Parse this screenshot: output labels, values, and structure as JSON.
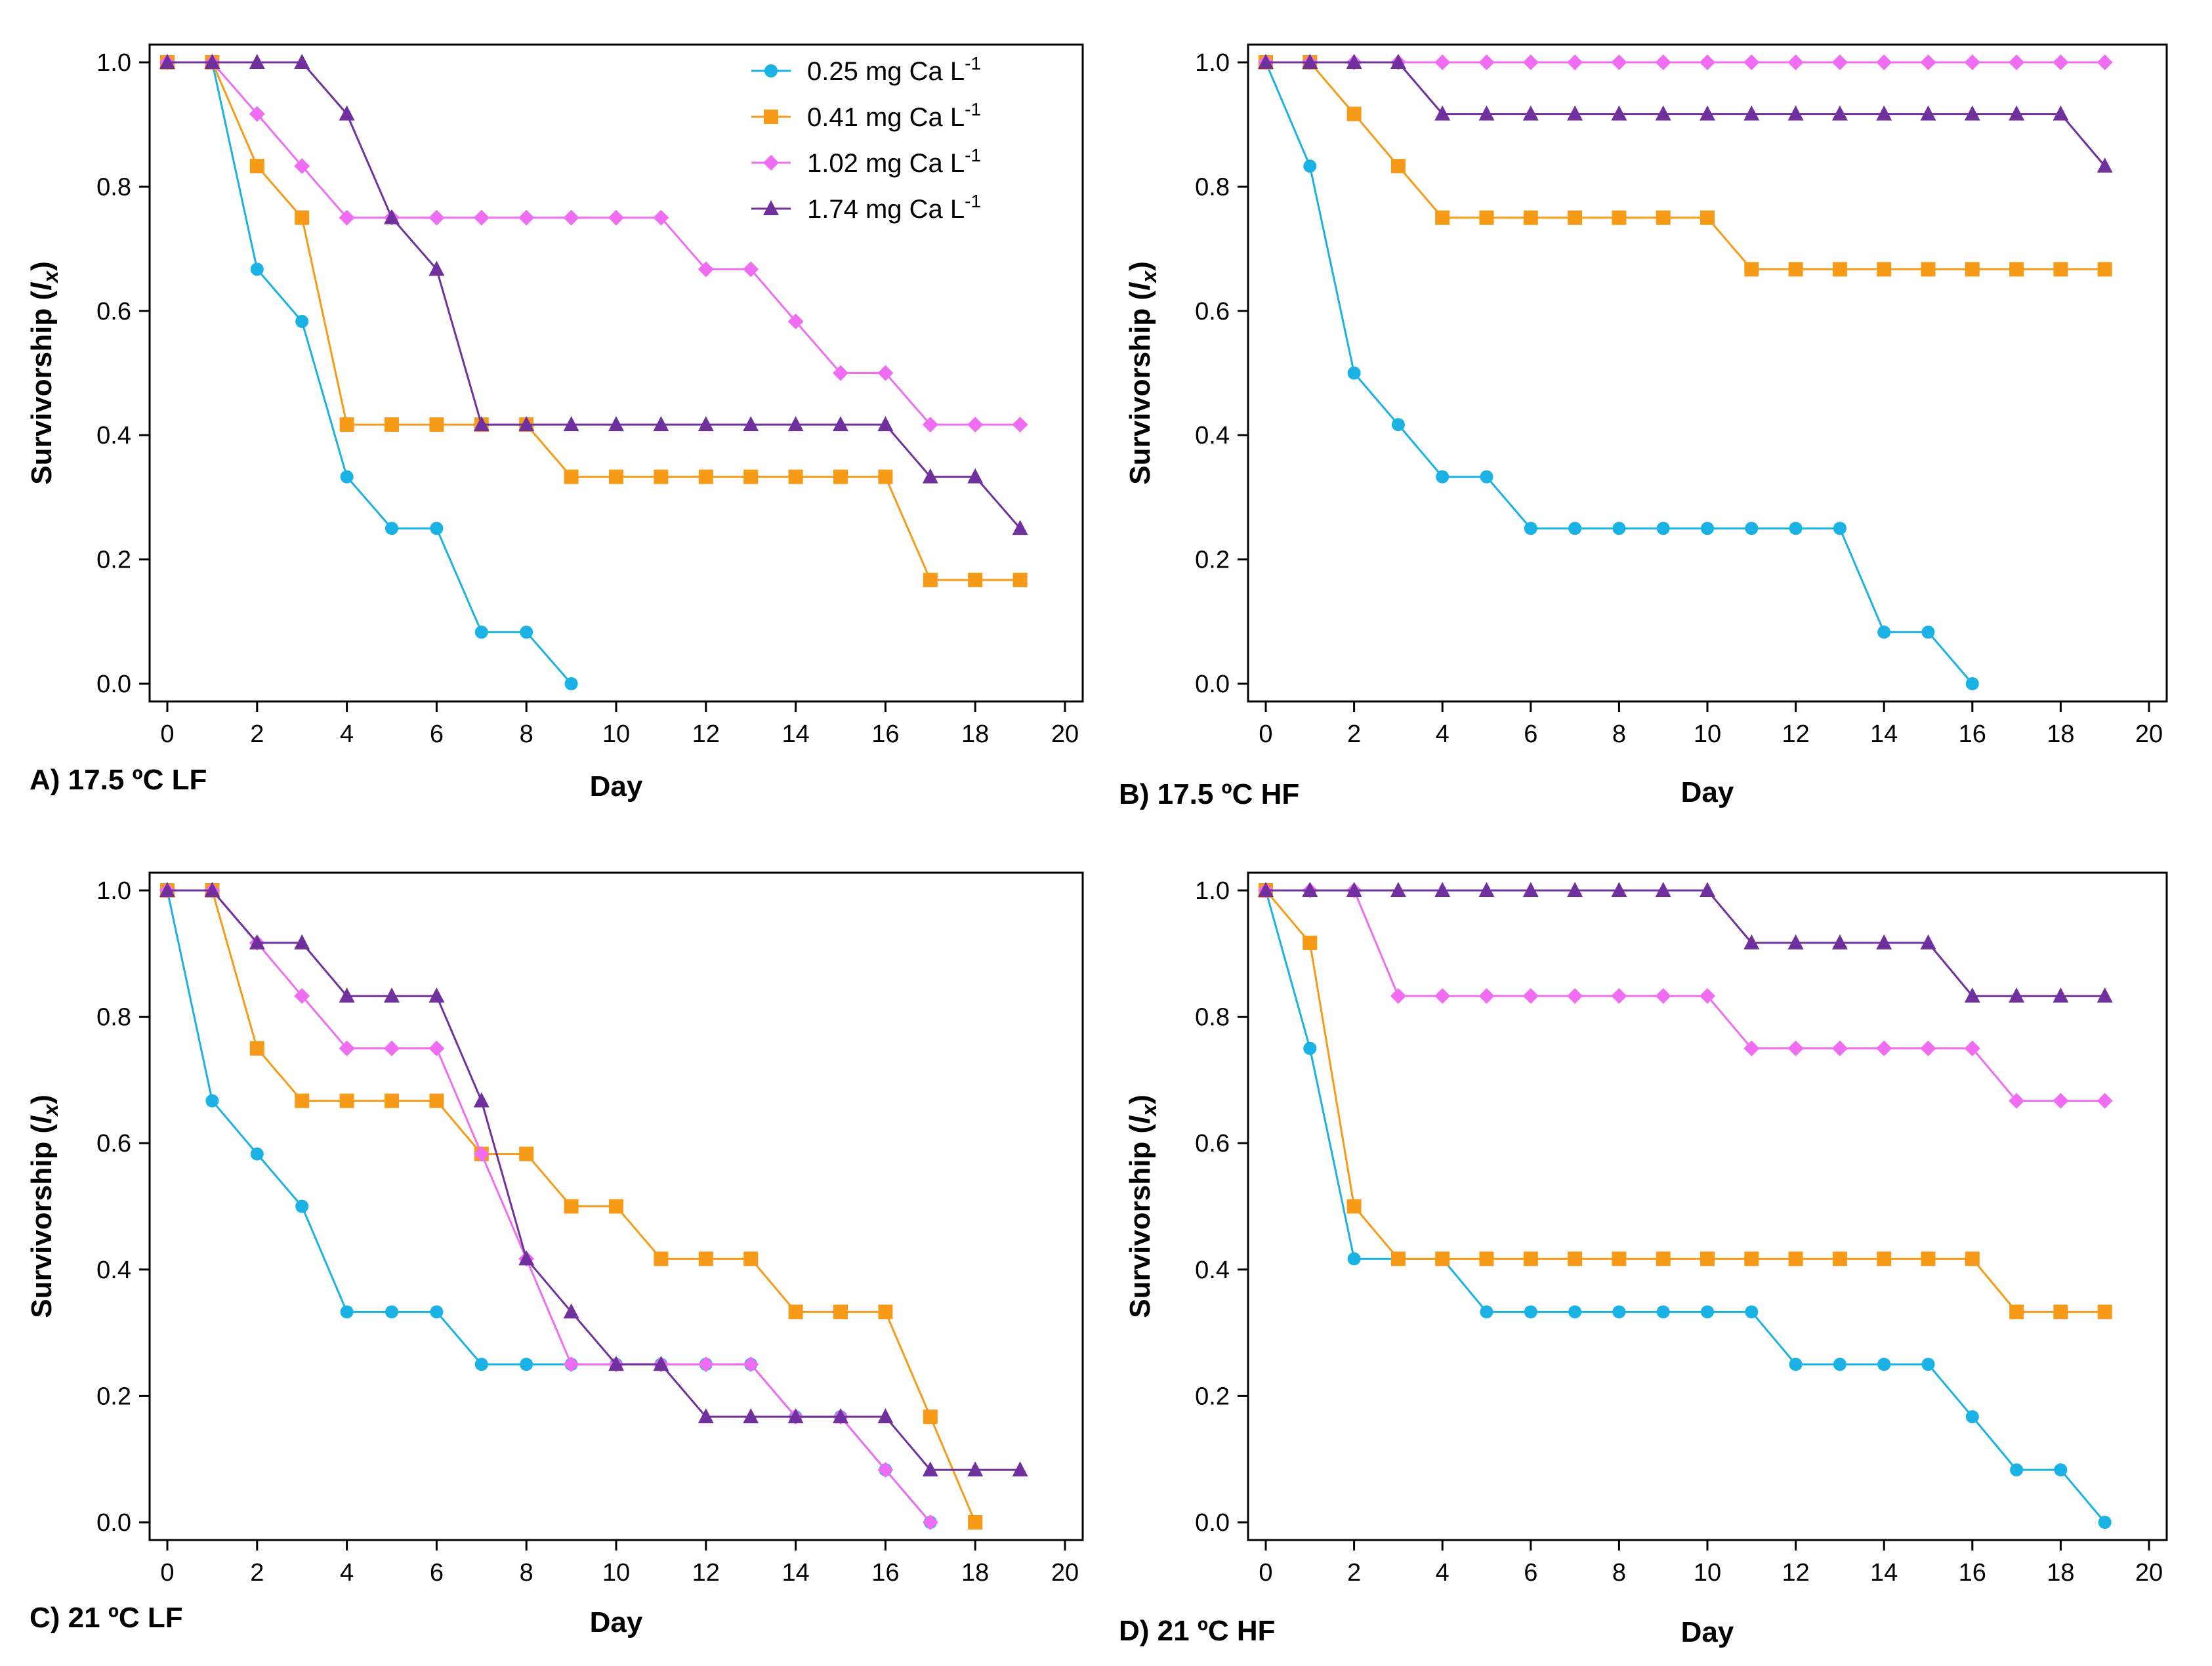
{
  "series_meta": [
    {
      "name": "0.25 mg Ca L",
      "sup": "-1",
      "color": "#1ab1e5",
      "marker": "circle"
    },
    {
      "name": "0.41 mg Ca L",
      "sup": "-1",
      "color": "#f79a17",
      "marker": "square"
    },
    {
      "name": "1.02 mg Ca L",
      "sup": "-1",
      "color": "#f06cf3",
      "marker": "diamond"
    },
    {
      "name": "1.74 mg Ca L",
      "sup": "-1",
      "color": "#70309e",
      "marker": "triangle"
    }
  ],
  "chart_data": [
    {
      "type": "line",
      "title": "A) 17.5 ºC LF",
      "xlabel": "Day",
      "ylabel": "Survivorship (",
      "ylabel_var": "l",
      "ylabel_sub": "x",
      "ylabel_close": ")",
      "xlim": [
        0,
        20
      ],
      "ylim": [
        0,
        1
      ],
      "xticks": [
        "0",
        "2",
        "4",
        "6",
        "8",
        "10",
        "12",
        "14",
        "16",
        "18",
        "20"
      ],
      "yticks": [
        "0.0",
        "0.2",
        "0.4",
        "0.6",
        "0.8",
        "1.0"
      ],
      "legend": "top-right",
      "series": [
        {
          "name": "0.25 mg Ca L-1",
          "x": [
            0,
            1,
            2,
            3,
            4,
            5,
            6,
            7,
            8,
            9
          ],
          "y": [
            1.0,
            1.0,
            0.667,
            0.583,
            0.333,
            0.25,
            0.25,
            0.083,
            0.083,
            0.0
          ]
        },
        {
          "name": "0.41 mg Ca L-1",
          "x": [
            0,
            1,
            2,
            3,
            4,
            5,
            6,
            7,
            8,
            9,
            10,
            11,
            12,
            13,
            14,
            15,
            16,
            17,
            18,
            19
          ],
          "y": [
            1.0,
            1.0,
            0.833,
            0.75,
            0.417,
            0.417,
            0.417,
            0.417,
            0.417,
            0.333,
            0.333,
            0.333,
            0.333,
            0.333,
            0.333,
            0.333,
            0.333,
            0.167,
            0.167,
            0.167
          ]
        },
        {
          "name": "1.02 mg Ca L-1",
          "x": [
            0,
            1,
            2,
            3,
            4,
            5,
            6,
            7,
            8,
            9,
            10,
            11,
            12,
            13,
            14,
            15,
            16,
            17,
            18,
            19
          ],
          "y": [
            1.0,
            1.0,
            0.917,
            0.833,
            0.75,
            0.75,
            0.75,
            0.75,
            0.75,
            0.75,
            0.75,
            0.75,
            0.667,
            0.667,
            0.583,
            0.5,
            0.5,
            0.417,
            0.417,
            0.417
          ]
        },
        {
          "name": "1.74 mg Ca L-1",
          "x": [
            0,
            1,
            2,
            3,
            4,
            5,
            6,
            7,
            8,
            9,
            10,
            11,
            12,
            13,
            14,
            15,
            16,
            17,
            18,
            19
          ],
          "y": [
            1.0,
            1.0,
            1.0,
            1.0,
            0.917,
            0.75,
            0.667,
            0.417,
            0.417,
            0.417,
            0.417,
            0.417,
            0.417,
            0.417,
            0.417,
            0.417,
            0.417,
            0.333,
            0.333,
            0.25
          ]
        }
      ]
    },
    {
      "type": "line",
      "title": "B) 17.5 ºC HF",
      "xlabel": "Day",
      "ylabel": "Survivorship (",
      "ylabel_var": "l",
      "ylabel_sub": "x",
      "ylabel_close": ")",
      "xlim": [
        0,
        20
      ],
      "ylim": [
        0,
        1
      ],
      "xticks": [
        "0",
        "2",
        "4",
        "6",
        "8",
        "10",
        "12",
        "14",
        "16",
        "18",
        "20"
      ],
      "yticks": [
        "0.0",
        "0.2",
        "0.4",
        "0.6",
        "0.8",
        "1.0"
      ],
      "legend": "none",
      "series": [
        {
          "name": "0.25 mg Ca L-1",
          "x": [
            0,
            1,
            2,
            3,
            4,
            5,
            6,
            7,
            8,
            9,
            10,
            11,
            12,
            13,
            14,
            15,
            16
          ],
          "y": [
            1.0,
            0.833,
            0.5,
            0.417,
            0.333,
            0.333,
            0.25,
            0.25,
            0.25,
            0.25,
            0.25,
            0.25,
            0.25,
            0.25,
            0.083,
            0.083,
            0.0
          ]
        },
        {
          "name": "0.41 mg Ca L-1",
          "x": [
            0,
            1,
            2,
            3,
            4,
            5,
            6,
            7,
            8,
            9,
            10,
            11,
            12,
            13,
            14,
            15,
            16,
            17,
            18,
            19
          ],
          "y": [
            1.0,
            1.0,
            0.917,
            0.833,
            0.75,
            0.75,
            0.75,
            0.75,
            0.75,
            0.75,
            0.75,
            0.667,
            0.667,
            0.667,
            0.667,
            0.667,
            0.667,
            0.667,
            0.667,
            0.667
          ]
        },
        {
          "name": "1.02 mg Ca L-1",
          "x": [
            0,
            1,
            2,
            3,
            4,
            5,
            6,
            7,
            8,
            9,
            10,
            11,
            12,
            13,
            14,
            15,
            16,
            17,
            18,
            19
          ],
          "y": [
            1.0,
            1.0,
            1.0,
            1.0,
            1.0,
            1.0,
            1.0,
            1.0,
            1.0,
            1.0,
            1.0,
            1.0,
            1.0,
            1.0,
            1.0,
            1.0,
            1.0,
            1.0,
            1.0,
            1.0
          ]
        },
        {
          "name": "1.74 mg Ca L-1",
          "x": [
            0,
            1,
            2,
            3,
            4,
            5,
            6,
            7,
            8,
            9,
            10,
            11,
            12,
            13,
            14,
            15,
            16,
            17,
            18,
            19
          ],
          "y": [
            1.0,
            1.0,
            1.0,
            1.0,
            0.917,
            0.917,
            0.917,
            0.917,
            0.917,
            0.917,
            0.917,
            0.917,
            0.917,
            0.917,
            0.917,
            0.917,
            0.917,
            0.917,
            0.917,
            0.833
          ]
        }
      ]
    },
    {
      "type": "line",
      "title": "C) 21 ºC LF",
      "xlabel": "Day",
      "ylabel": "Survivorship (",
      "ylabel_var": "l",
      "ylabel_sub": "x",
      "ylabel_close": ")",
      "xlim": [
        0,
        20
      ],
      "ylim": [
        0,
        1
      ],
      "xticks": [
        "0",
        "2",
        "4",
        "6",
        "8",
        "10",
        "12",
        "14",
        "16",
        "18",
        "20"
      ],
      "yticks": [
        "0.0",
        "0.2",
        "0.4",
        "0.6",
        "0.8",
        "1.0"
      ],
      "legend": "none",
      "series": [
        {
          "name": "0.25 mg Ca L-1",
          "x": [
            0,
            1,
            2,
            3,
            4,
            5,
            6,
            7,
            8,
            9,
            10,
            11,
            12,
            13,
            14,
            15,
            16,
            17,
            18,
            19
          ],
          "y": [
            1.0,
            0.667,
            0.583,
            0.5,
            0.333,
            0.333,
            0.333,
            0.25,
            0.25,
            0.25,
            0.25,
            0.25,
            0.25,
            0.25,
            0.167,
            0.167,
            0.083,
            0.0,
            null,
            null
          ]
        },
        {
          "name": "0.41 mg Ca L-1",
          "x": [
            0,
            1,
            2,
            3,
            4,
            5,
            6,
            7,
            8,
            9,
            10,
            11,
            12,
            13,
            14,
            15,
            16,
            17,
            18
          ],
          "y": [
            1.0,
            1.0,
            0.75,
            0.667,
            0.667,
            0.667,
            0.667,
            0.583,
            0.583,
            0.5,
            0.5,
            0.417,
            0.417,
            0.417,
            0.333,
            0.333,
            0.333,
            0.167,
            0.0
          ]
        },
        {
          "name": "1.02 mg Ca L-1",
          "x": [
            0,
            1,
            2,
            3,
            4,
            5,
            6,
            7,
            8,
            9,
            10,
            11,
            12,
            13,
            14,
            15,
            16,
            17
          ],
          "y": [
            1.0,
            1.0,
            0.917,
            0.833,
            0.75,
            0.75,
            0.75,
            0.583,
            0.417,
            0.25,
            0.25,
            0.25,
            0.25,
            0.25,
            0.167,
            0.167,
            0.083,
            0.0
          ]
        },
        {
          "name": "1.74 mg Ca L-1",
          "x": [
            0,
            1,
            2,
            3,
            4,
            5,
            6,
            7,
            8,
            9,
            10,
            11,
            12,
            13,
            14,
            15,
            16,
            17,
            18,
            19
          ],
          "y": [
            1.0,
            1.0,
            0.917,
            0.917,
            0.833,
            0.833,
            0.833,
            0.667,
            0.417,
            0.333,
            0.25,
            0.25,
            0.167,
            0.167,
            0.167,
            0.167,
            0.167,
            0.083,
            0.083,
            0.083
          ]
        }
      ]
    },
    {
      "type": "line",
      "title": "D) 21 ºC HF",
      "xlabel": "Day",
      "ylabel": "Survivorship (",
      "ylabel_var": "l",
      "ylabel_sub": "x",
      "ylabel_close": ")",
      "xlim": [
        0,
        20
      ],
      "ylim": [
        0,
        1
      ],
      "xticks": [
        "0",
        "2",
        "4",
        "6",
        "8",
        "10",
        "12",
        "14",
        "16",
        "18",
        "20"
      ],
      "yticks": [
        "0.0",
        "0.2",
        "0.4",
        "0.6",
        "0.8",
        "1.0"
      ],
      "legend": "none",
      "series": [
        {
          "name": "0.25 mg Ca L-1",
          "x": [
            0,
            1,
            2,
            3,
            4,
            5,
            6,
            7,
            8,
            9,
            10,
            11,
            12,
            13,
            14,
            15,
            16,
            17,
            18,
            19
          ],
          "y": [
            1.0,
            0.75,
            0.417,
            0.417,
            0.417,
            0.333,
            0.333,
            0.333,
            0.333,
            0.333,
            0.333,
            0.333,
            0.25,
            0.25,
            0.25,
            0.25,
            0.167,
            0.083,
            0.083,
            0.0
          ]
        },
        {
          "name": "0.41 mg Ca L-1",
          "x": [
            0,
            1,
            2,
            3,
            4,
            5,
            6,
            7,
            8,
            9,
            10,
            11,
            12,
            13,
            14,
            15,
            16,
            17,
            18,
            19
          ],
          "y": [
            1.0,
            0.917,
            0.5,
            0.417,
            0.417,
            0.417,
            0.417,
            0.417,
            0.417,
            0.417,
            0.417,
            0.417,
            0.417,
            0.417,
            0.417,
            0.417,
            0.417,
            0.333,
            0.333,
            0.333
          ]
        },
        {
          "name": "1.02 mg Ca L-1",
          "x": [
            0,
            1,
            2,
            3,
            4,
            5,
            6,
            7,
            8,
            9,
            10,
            11,
            12,
            13,
            14,
            15,
            16,
            17,
            18,
            19
          ],
          "y": [
            1.0,
            1.0,
            1.0,
            0.833,
            0.833,
            0.833,
            0.833,
            0.833,
            0.833,
            0.833,
            0.833,
            0.75,
            0.75,
            0.75,
            0.75,
            0.75,
            0.75,
            0.667,
            0.667,
            0.667
          ]
        },
        {
          "name": "1.74 mg Ca L-1",
          "x": [
            0,
            1,
            2,
            3,
            4,
            5,
            6,
            7,
            8,
            9,
            10,
            11,
            12,
            13,
            14,
            15,
            16,
            17,
            18,
            19
          ],
          "y": [
            1.0,
            1.0,
            1.0,
            1.0,
            1.0,
            1.0,
            1.0,
            1.0,
            1.0,
            1.0,
            1.0,
            0.917,
            0.917,
            0.917,
            0.917,
            0.917,
            0.833,
            0.833,
            0.833,
            0.833
          ]
        }
      ]
    }
  ]
}
